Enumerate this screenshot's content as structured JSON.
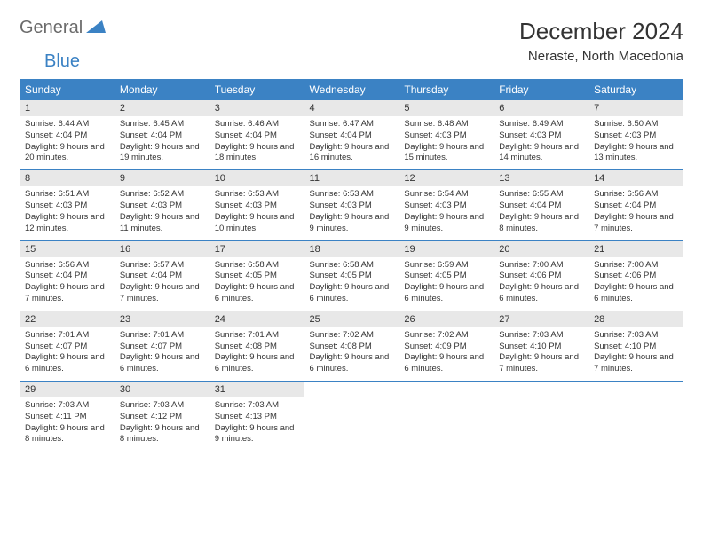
{
  "logo": {
    "part1": "General",
    "part2": "Blue"
  },
  "title": "December 2024",
  "location": "Neraste, North Macedonia",
  "colors": {
    "header_bg": "#3b82c4",
    "header_text": "#ffffff",
    "daynum_bg": "#e8e8e8",
    "row_divider": "#3b82c4",
    "logo_gray": "#6b6b6b",
    "logo_blue": "#3b82c4",
    "text": "#333333",
    "background": "#ffffff"
  },
  "typography": {
    "title_fontsize": 26,
    "location_fontsize": 15,
    "weekday_fontsize": 12,
    "daynum_fontsize": 11,
    "cell_fontsize": 9.5,
    "logo_fontsize": 20
  },
  "weekdays": [
    "Sunday",
    "Monday",
    "Tuesday",
    "Wednesday",
    "Thursday",
    "Friday",
    "Saturday"
  ],
  "days": [
    {
      "n": "1",
      "sr": "6:44 AM",
      "ss": "4:04 PM",
      "dl": "9 hours and 20 minutes."
    },
    {
      "n": "2",
      "sr": "6:45 AM",
      "ss": "4:04 PM",
      "dl": "9 hours and 19 minutes."
    },
    {
      "n": "3",
      "sr": "6:46 AM",
      "ss": "4:04 PM",
      "dl": "9 hours and 18 minutes."
    },
    {
      "n": "4",
      "sr": "6:47 AM",
      "ss": "4:04 PM",
      "dl": "9 hours and 16 minutes."
    },
    {
      "n": "5",
      "sr": "6:48 AM",
      "ss": "4:03 PM",
      "dl": "9 hours and 15 minutes."
    },
    {
      "n": "6",
      "sr": "6:49 AM",
      "ss": "4:03 PM",
      "dl": "9 hours and 14 minutes."
    },
    {
      "n": "7",
      "sr": "6:50 AM",
      "ss": "4:03 PM",
      "dl": "9 hours and 13 minutes."
    },
    {
      "n": "8",
      "sr": "6:51 AM",
      "ss": "4:03 PM",
      "dl": "9 hours and 12 minutes."
    },
    {
      "n": "9",
      "sr": "6:52 AM",
      "ss": "4:03 PM",
      "dl": "9 hours and 11 minutes."
    },
    {
      "n": "10",
      "sr": "6:53 AM",
      "ss": "4:03 PM",
      "dl": "9 hours and 10 minutes."
    },
    {
      "n": "11",
      "sr": "6:53 AM",
      "ss": "4:03 PM",
      "dl": "9 hours and 9 minutes."
    },
    {
      "n": "12",
      "sr": "6:54 AM",
      "ss": "4:03 PM",
      "dl": "9 hours and 9 minutes."
    },
    {
      "n": "13",
      "sr": "6:55 AM",
      "ss": "4:04 PM",
      "dl": "9 hours and 8 minutes."
    },
    {
      "n": "14",
      "sr": "6:56 AM",
      "ss": "4:04 PM",
      "dl": "9 hours and 7 minutes."
    },
    {
      "n": "15",
      "sr": "6:56 AM",
      "ss": "4:04 PM",
      "dl": "9 hours and 7 minutes."
    },
    {
      "n": "16",
      "sr": "6:57 AM",
      "ss": "4:04 PM",
      "dl": "9 hours and 7 minutes."
    },
    {
      "n": "17",
      "sr": "6:58 AM",
      "ss": "4:05 PM",
      "dl": "9 hours and 6 minutes."
    },
    {
      "n": "18",
      "sr": "6:58 AM",
      "ss": "4:05 PM",
      "dl": "9 hours and 6 minutes."
    },
    {
      "n": "19",
      "sr": "6:59 AM",
      "ss": "4:05 PM",
      "dl": "9 hours and 6 minutes."
    },
    {
      "n": "20",
      "sr": "7:00 AM",
      "ss": "4:06 PM",
      "dl": "9 hours and 6 minutes."
    },
    {
      "n": "21",
      "sr": "7:00 AM",
      "ss": "4:06 PM",
      "dl": "9 hours and 6 minutes."
    },
    {
      "n": "22",
      "sr": "7:01 AM",
      "ss": "4:07 PM",
      "dl": "9 hours and 6 minutes."
    },
    {
      "n": "23",
      "sr": "7:01 AM",
      "ss": "4:07 PM",
      "dl": "9 hours and 6 minutes."
    },
    {
      "n": "24",
      "sr": "7:01 AM",
      "ss": "4:08 PM",
      "dl": "9 hours and 6 minutes."
    },
    {
      "n": "25",
      "sr": "7:02 AM",
      "ss": "4:08 PM",
      "dl": "9 hours and 6 minutes."
    },
    {
      "n": "26",
      "sr": "7:02 AM",
      "ss": "4:09 PM",
      "dl": "9 hours and 6 minutes."
    },
    {
      "n": "27",
      "sr": "7:03 AM",
      "ss": "4:10 PM",
      "dl": "9 hours and 7 minutes."
    },
    {
      "n": "28",
      "sr": "7:03 AM",
      "ss": "4:10 PM",
      "dl": "9 hours and 7 minutes."
    },
    {
      "n": "29",
      "sr": "7:03 AM",
      "ss": "4:11 PM",
      "dl": "9 hours and 8 minutes."
    },
    {
      "n": "30",
      "sr": "7:03 AM",
      "ss": "4:12 PM",
      "dl": "9 hours and 8 minutes."
    },
    {
      "n": "31",
      "sr": "7:03 AM",
      "ss": "4:13 PM",
      "dl": "9 hours and 9 minutes."
    }
  ],
  "labels": {
    "sunrise": "Sunrise:",
    "sunset": "Sunset:",
    "daylight": "Daylight:"
  },
  "layout": {
    "start_weekday_index": 0,
    "total_cells": 35,
    "columns": 7
  }
}
